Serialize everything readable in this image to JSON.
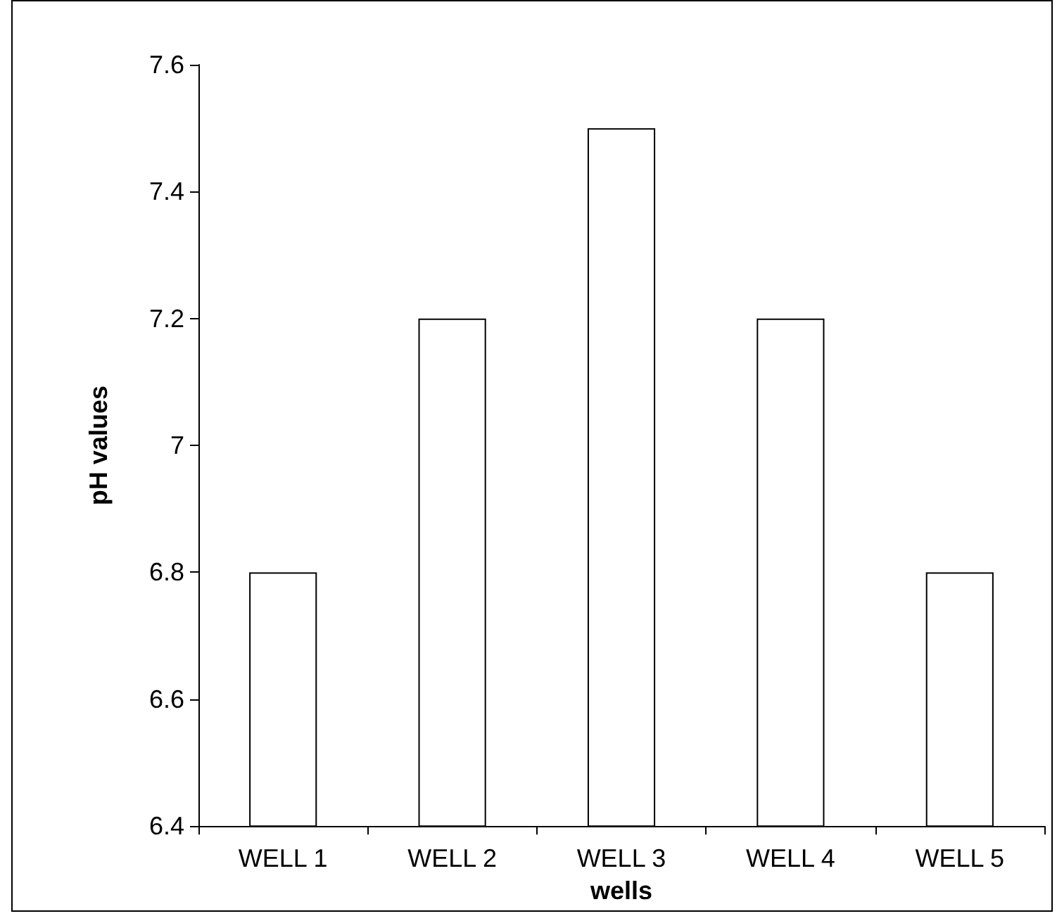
{
  "chart_data": {
    "type": "bar",
    "xlabel": "wells",
    "ylabel": "pH values",
    "categories": [
      "WELL 1",
      "WELL 2",
      "WELL 3",
      "WELL 4",
      "WELL 5"
    ],
    "values": [
      6.8,
      7.2,
      7.5,
      7.2,
      6.8
    ],
    "color": "#ffffff",
    "ylim": [
      6.4,
      7.6
    ],
    "yticks": [
      6.4,
      6.6,
      6.8,
      7,
      7.2,
      7.4,
      7.6
    ],
    "grid": false
  }
}
